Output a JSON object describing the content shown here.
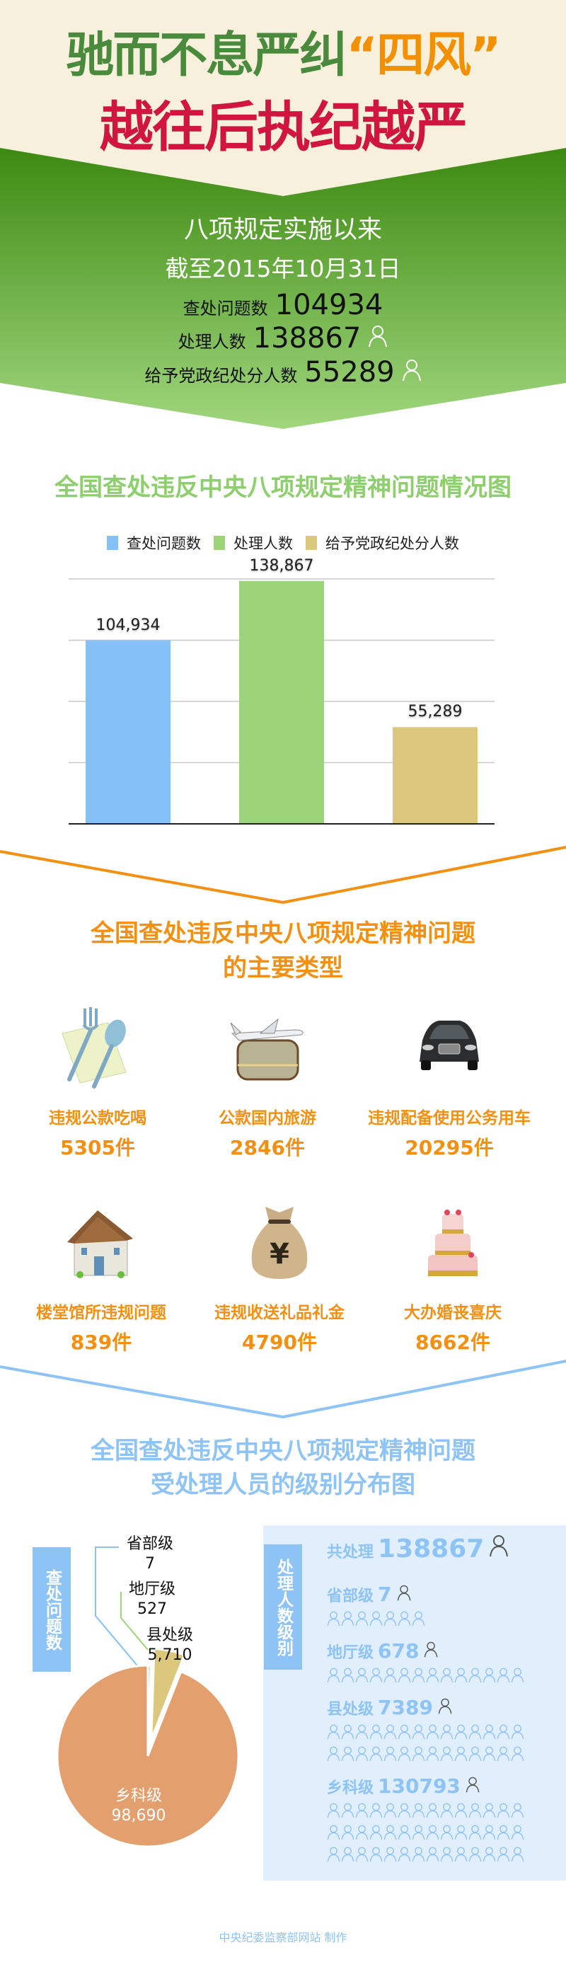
{
  "header": {
    "title_line1_part1": "驰而不息严纠",
    "title_line1_highlight": "“四风”",
    "title_line2": "越往后执纪越严",
    "subtitle": "八项规定实施以来",
    "as_of": "截至2015年10月31日",
    "stats": [
      {
        "label": "查处问题数",
        "value": "104934",
        "icon": null
      },
      {
        "label": "处理人数",
        "value": "138867",
        "icon": "person-icon"
      },
      {
        "label": "给予党政纪处分人数",
        "value": "55289",
        "icon": "person-icon"
      }
    ]
  },
  "colors": {
    "green": "#4a8a3c",
    "orange": "#f39000",
    "red": "#d0163f",
    "blue": "#85c1f7",
    "lightgreen": "#9dd47a",
    "tan": "#dcc87c",
    "salmon": "#e3a06e"
  },
  "chart_data": [
    {
      "type": "bar",
      "title": "全国查处违反中央八项规定精神问题情况图",
      "categories": [
        "查处问题数",
        "处理人数",
        "给予党政纪处分人数"
      ],
      "values": [
        104934,
        138867,
        55289
      ],
      "value_labels": [
        "104,934",
        "138,867",
        "55,289"
      ],
      "colors": [
        "#85c1f7",
        "#9dd47a",
        "#dcc87c"
      ],
      "ylim": [
        0,
        140000
      ],
      "grid": true,
      "legend": "top"
    },
    {
      "type": "pie",
      "title_line1": "全国查处违反中央八项规定精神问题",
      "title_line2": "受处理人员的级别分布图",
      "side_label": "查处问题数",
      "slices": [
        {
          "name": "省部级",
          "value": 7,
          "label": "7",
          "color": "#85c1f7"
        },
        {
          "name": "地厅级",
          "value": 527,
          "label": "527",
          "color": "#9dd47a"
        },
        {
          "name": "县处级",
          "value": 5710,
          "label": "5,710",
          "color": "#dcc87c",
          "exploded": true
        },
        {
          "name": "乡科级",
          "value": 98690,
          "label": "98,690",
          "color": "#e3a06e"
        }
      ]
    }
  ],
  "types": {
    "title_line1": "全国查处违反中央八项规定精神问题",
    "title_line2": "的主要类型",
    "items": [
      {
        "label": "违规公款吃喝",
        "count": "5305件",
        "icon": "fork-spoon-icon"
      },
      {
        "label": "公款国内旅游",
        "count": "2846件",
        "icon": "plane-luggage-icon"
      },
      {
        "label": "违规配备使用公务用车",
        "count": "20295件",
        "icon": "car-icon"
      },
      {
        "label": "楼堂馆所违规问题",
        "count": "839件",
        "icon": "house-icon"
      },
      {
        "label": "违规收送礼品礼金",
        "count": "4790件",
        "icon": "money-bag-icon"
      },
      {
        "label": "大办婚丧喜庆",
        "count": "8662件",
        "icon": "cake-icon"
      }
    ]
  },
  "levels_panel": {
    "side_label": "处理人数级别",
    "total_label": "共处理",
    "total_value": "138867",
    "levels": [
      {
        "label": "省部级",
        "value": "7",
        "pictogram_count": 7
      },
      {
        "label": "地厅级",
        "value": "678",
        "pictogram_count": 14
      },
      {
        "label": "县处级",
        "value": "7389",
        "pictogram_count": 28
      },
      {
        "label": "乡科级",
        "value": "130793",
        "pictogram_count": 42
      }
    ]
  },
  "footer": "中央纪委监察部网站 制作"
}
